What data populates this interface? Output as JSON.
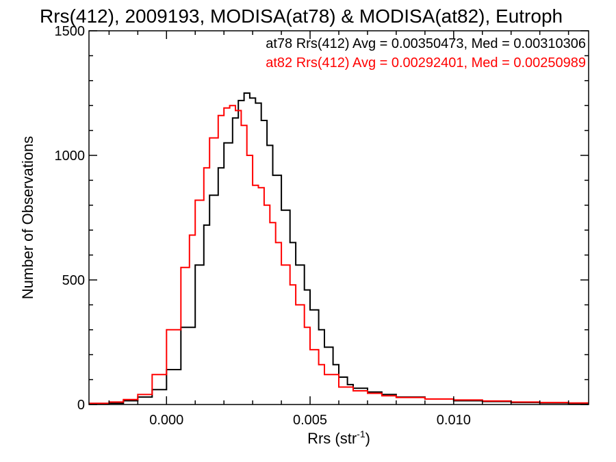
{
  "chart_data": {
    "type": "line",
    "title": "Rrs(412), 2009193, MODISA(at78) & MODISA(at82), Eutroph",
    "xlabel": "Rrs (str",
    "xlabel_sup": "-1",
    "xlabel_close": ")",
    "ylabel": "Number of Observations",
    "xlim": [
      -0.0027,
      0.0147
    ],
    "ylim": [
      0,
      1500
    ],
    "xticks": [
      0.0,
      0.005,
      0.01
    ],
    "xtick_labels": [
      "0.000",
      "0.005",
      "0.010"
    ],
    "yticks": [
      0,
      500,
      1000,
      1500
    ],
    "ytick_labels": [
      "0",
      "500",
      "1000",
      "1500"
    ],
    "grid": false,
    "legend_position": "top-right",
    "legend": [
      {
        "text": "at78 Rrs(412) Avg = 0.00350473, Med = 0.00310306",
        "color": "#000000"
      },
      {
        "text": "at82 Rrs(412) Avg = 0.00292401, Med = 0.00250989",
        "color": "#ff0000"
      }
    ],
    "series": [
      {
        "name": "at78",
        "color": "#000000",
        "x": [
          -0.0027,
          -0.002,
          -0.0015,
          -0.001,
          -0.0005,
          0.0,
          0.0005,
          0.001,
          0.0013,
          0.0015,
          0.0018,
          0.002,
          0.0023,
          0.0025,
          0.0027,
          0.0029,
          0.0031,
          0.0033,
          0.0035,
          0.0037,
          0.004,
          0.0043,
          0.0045,
          0.0048,
          0.005,
          0.0053,
          0.0055,
          0.0058,
          0.006,
          0.0063,
          0.0065,
          0.007,
          0.0075,
          0.008,
          0.009,
          0.01,
          0.011,
          0.012,
          0.013,
          0.014,
          0.0147
        ],
        "y": [
          0,
          5,
          15,
          30,
          60,
          140,
          310,
          560,
          720,
          840,
          950,
          1050,
          1150,
          1220,
          1250,
          1230,
          1210,
          1140,
          1040,
          920,
          780,
          650,
          560,
          460,
          380,
          300,
          230,
          160,
          110,
          80,
          65,
          50,
          40,
          30,
          22,
          15,
          12,
          8,
          6,
          4,
          3
        ]
      },
      {
        "name": "at82",
        "color": "#ff0000",
        "x": [
          -0.0027,
          -0.002,
          -0.0015,
          -0.001,
          -0.0005,
          0.0,
          0.0005,
          0.0008,
          0.001,
          0.0013,
          0.0015,
          0.0018,
          0.002,
          0.0022,
          0.0024,
          0.0026,
          0.0028,
          0.003,
          0.0032,
          0.0034,
          0.0036,
          0.0038,
          0.004,
          0.0043,
          0.0045,
          0.0048,
          0.005,
          0.0053,
          0.0055,
          0.006,
          0.0065,
          0.007,
          0.0075,
          0.008,
          0.009,
          0.01,
          0.011,
          0.012,
          0.013,
          0.014,
          0.0147
        ],
        "y": [
          5,
          10,
          20,
          40,
          120,
          300,
          550,
          680,
          820,
          950,
          1070,
          1160,
          1190,
          1200,
          1180,
          1120,
          1000,
          880,
          870,
          800,
          730,
          650,
          560,
          480,
          400,
          310,
          220,
          160,
          120,
          70,
          55,
          45,
          35,
          28,
          22,
          18,
          14,
          10,
          8,
          6,
          4
        ]
      }
    ]
  }
}
